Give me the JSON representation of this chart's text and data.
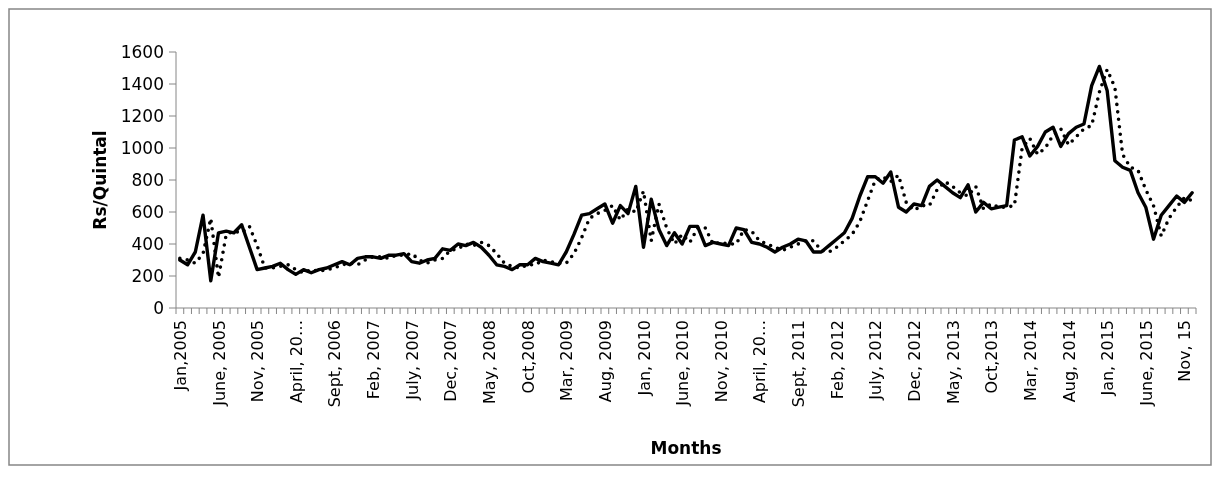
{
  "chart_data": {
    "type": "line",
    "xlabel": "Months",
    "ylabel": "Rs/Quintal",
    "categories": [
      "Jan,2005",
      null,
      null,
      null,
      null,
      "June, 2005",
      null,
      null,
      null,
      null,
      "Nov, 2005",
      null,
      null,
      null,
      null,
      "April, 20…",
      null,
      null,
      null,
      null,
      "Sept, 2006",
      null,
      null,
      null,
      null,
      "Feb, 2007",
      null,
      null,
      null,
      null,
      "July, 2007",
      null,
      null,
      null,
      null,
      "Dec, 2007",
      null,
      null,
      null,
      null,
      "May, 2008",
      null,
      null,
      null,
      null,
      "Oct,2008",
      null,
      null,
      null,
      null,
      "Mar, 2009",
      null,
      null,
      null,
      null,
      "Aug, 2009",
      null,
      null,
      null,
      null,
      "Jan, 2010",
      null,
      null,
      null,
      null,
      "June, 2010",
      null,
      null,
      null,
      null,
      "Nov, 2010",
      null,
      null,
      null,
      null,
      "April, 20…",
      null,
      null,
      null,
      null,
      "Sept, 2011",
      null,
      null,
      null,
      null,
      "Feb, 2012",
      null,
      null,
      null,
      null,
      "July, 2012",
      null,
      null,
      null,
      null,
      "Dec, 2012",
      null,
      null,
      null,
      null,
      "May, 2013",
      null,
      null,
      null,
      null,
      "Oct,2013",
      null,
      null,
      null,
      null,
      "Mar, 2014",
      null,
      null,
      null,
      null,
      "Aug, 2014",
      null,
      null,
      null,
      null,
      "Jan, 2015",
      null,
      null,
      null,
      null,
      "June, 2015",
      null,
      null,
      null,
      null,
      "Nov, 15",
      null
    ],
    "series": [
      {
        "color": "#000000",
        "line_style": "solid",
        "values": [
          300,
          270,
          350,
          580,
          170,
          470,
          480,
          470,
          520,
          380,
          240,
          250,
          260,
          280,
          240,
          210,
          240,
          220,
          240,
          250,
          270,
          290,
          270,
          310,
          320,
          320,
          310,
          330,
          330,
          340,
          290,
          280,
          300,
          310,
          370,
          360,
          400,
          390,
          410,
          380,
          330,
          270,
          260,
          240,
          270,
          270,
          310,
          290,
          280,
          270,
          350,
          460,
          580,
          590,
          620,
          650,
          530,
          640,
          590,
          760,
          380,
          680,
          490,
          390,
          470,
          400,
          510,
          510,
          390,
          410,
          400,
          390,
          500,
          490,
          410,
          400,
          380,
          350,
          380,
          400,
          430,
          420,
          350,
          350,
          390,
          430,
          470,
          560,
          700,
          820,
          820,
          780,
          850,
          630,
          600,
          650,
          640,
          760,
          800,
          760,
          720,
          690,
          770,
          600,
          660,
          620,
          630,
          640,
          1050,
          1070,
          950,
          1010,
          1100,
          1130,
          1010,
          1090,
          1130,
          1150,
          1390,
          1510,
          1360,
          920,
          880,
          860,
          720,
          630,
          430,
          580,
          640,
          700,
          660,
          720
        ]
      },
      {
        "color": "#000000",
        "line_style": "dotted",
        "values": [
          310,
          300,
          280,
          340,
          560,
          190,
          460,
          480,
          470,
          510,
          390,
          250,
          250,
          260,
          270,
          240,
          220,
          240,
          230,
          240,
          250,
          270,
          280,
          270,
          300,
          320,
          320,
          310,
          330,
          330,
          340,
          300,
          280,
          300,
          310,
          360,
          370,
          400,
          390,
          410,
          390,
          340,
          280,
          260,
          250,
          270,
          270,
          300,
          290,
          280,
          280,
          340,
          440,
          560,
          590,
          610,
          640,
          550,
          620,
          600,
          730,
          420,
          650,
          500,
          400,
          460,
          410,
          500,
          500,
          400,
          410,
          400,
          400,
          490,
          480,
          420,
          400,
          380,
          360,
          380,
          400,
          420,
          420,
          360,
          350,
          380,
          420,
          460,
          540,
          670,
          800,
          820,
          790,
          830,
          660,
          610,
          640,
          640,
          740,
          790,
          760,
          720,
          700,
          760,
          620,
          650,
          630,
          630,
          640,
          1000,
          1060,
          960,
          1000,
          1080,
          1120,
          1020,
          1070,
          1120,
          1140,
          1350,
          1490,
          1380,
          960,
          880,
          860,
          740,
          640,
          450,
          560,
          630,
          690,
          670
        ]
      }
    ],
    "ylim": [
      0,
      1600
    ],
    "yticks": [
      0,
      200,
      400,
      600,
      800,
      1000,
      1200,
      1400,
      1600
    ]
  }
}
